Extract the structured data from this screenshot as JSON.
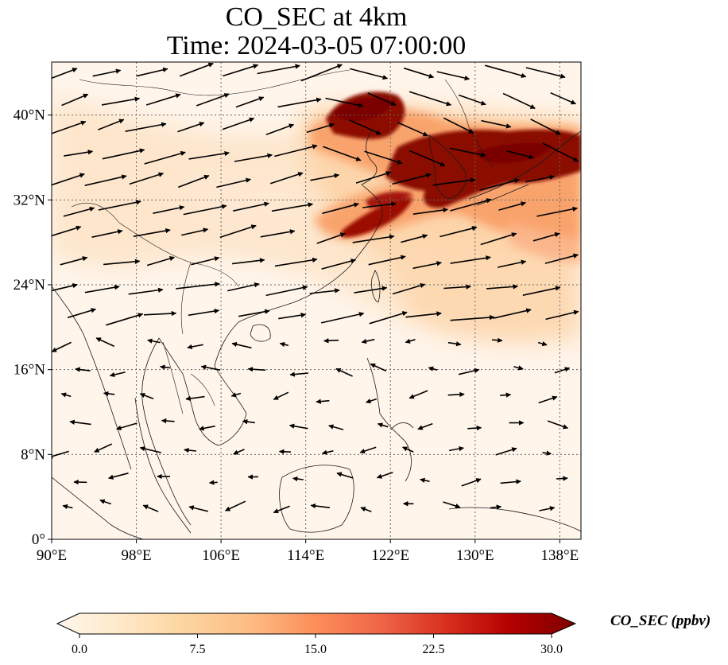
{
  "title": {
    "line1": "CO_SEC at 4km",
    "line2": "Time: 2024-03-05 07:00:00"
  },
  "map": {
    "lon_range": [
      90,
      140
    ],
    "lat_range": [
      0,
      45
    ],
    "lon_ticks": [
      {
        "value": 90,
        "label": "90°E"
      },
      {
        "value": 98,
        "label": "98°E"
      },
      {
        "value": 106,
        "label": "106°E"
      },
      {
        "value": 114,
        "label": "114°E"
      },
      {
        "value": 122,
        "label": "122°E"
      },
      {
        "value": 130,
        "label": "130°E"
      },
      {
        "value": 138,
        "label": "138°E"
      }
    ],
    "lat_ticks": [
      {
        "value": 0,
        "label": "0°"
      },
      {
        "value": 8,
        "label": "8°N"
      },
      {
        "value": 16,
        "label": "16°N"
      },
      {
        "value": 24,
        "label": "24°N"
      },
      {
        "value": 32,
        "label": "32°N"
      },
      {
        "value": 40,
        "label": "40°N"
      }
    ],
    "gridlines": true,
    "field_color_low": "#fff5eb",
    "field_color_high": "#7f0000"
  },
  "colorbar": {
    "label": "CO_SEC (ppbv)",
    "min": 0.0,
    "max": 30.0,
    "extend": "both",
    "ticks": [
      "0.0",
      "7.5",
      "15.0",
      "22.5",
      "30.0"
    ],
    "colormap": "OrRd",
    "stops": [
      "#fff7ec",
      "#fee8c8",
      "#fdd49e",
      "#fdbb84",
      "#fc8d59",
      "#ef6548",
      "#d7301f",
      "#b30000",
      "#7f0000"
    ]
  }
}
